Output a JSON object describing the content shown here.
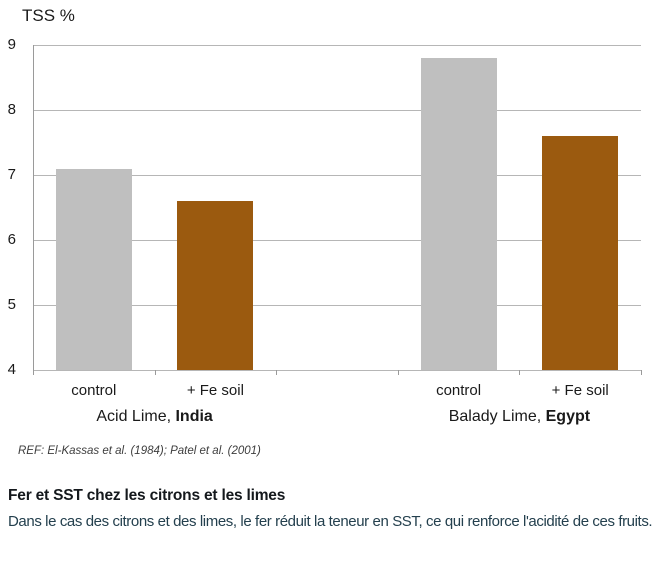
{
  "chart_data": {
    "type": "bar",
    "title": "TSS %",
    "ylabel": "TSS %",
    "xlabel": "",
    "ylim": [
      4,
      9
    ],
    "yticks": [
      4,
      5,
      6,
      7,
      8,
      9
    ],
    "grid": true,
    "legend": "none",
    "groups": [
      {
        "group_label": "Acid Lime,",
        "group_label_bold": "India",
        "categories": [
          "control",
          "+ Fe soil"
        ],
        "values": [
          7.1,
          6.6
        ]
      },
      {
        "group_label": "Balady Lime,",
        "group_label_bold": "Egypt",
        "categories": [
          "control",
          "+ Fe soil"
        ],
        "values": [
          8.8,
          7.6
        ]
      }
    ],
    "colors": {
      "control": "#bfbfbf",
      "+ Fe soil": "#9b5a0f"
    },
    "gridline_color": "#b6b6b6",
    "axis_color": "#9a9a9a",
    "label_color": "#1a1a1a"
  },
  "footer": {
    "reference": "REF: El-Kassas et al. (1984); Patel et al. (2001)",
    "heading": "Fer et SST chez les citrons et les limes",
    "body": "Dans le cas des citrons et des limes, le fer réduit la teneur en SST, ce qui renforce l'acidité de ces fruits."
  }
}
